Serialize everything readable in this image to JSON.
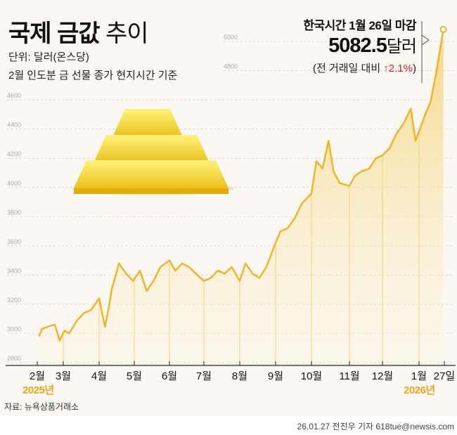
{
  "header": {
    "title_bold": "국제 금값",
    "title_normal": "추이",
    "unit": "단위: 달러(온스당)",
    "note": "2월 인도분 금 선물 종가 현지시간 기준"
  },
  "annotation": {
    "line1": "한국시간 1월 26일 마감",
    "value": "5082.5",
    "value_unit": "달러",
    "change_prefix": "(전 거래일 대비 ",
    "change": "↑2.1%",
    "change_suffix": ")",
    "change_color": "#e02020"
  },
  "footer": {
    "source": "자료: 뉴욕상품거래소",
    "credit": "26.01.27 전진우 기자 618tue@newsis.com"
  },
  "colors": {
    "line": "#f0b429",
    "fill": "#f7dc8c",
    "year": "#e8a817",
    "background": "#fbf8f3"
  },
  "chart_data": {
    "type": "area",
    "title": "국제 금값 추이",
    "ylabel": "",
    "ylim": [
      2800,
      5100
    ],
    "grid": true,
    "y_ticks": [
      2800,
      3000,
      3200,
      3400,
      3600,
      3800,
      4000,
      4200,
      4400,
      4600,
      4800,
      5000
    ],
    "x_ticks": [
      {
        "label": "2월",
        "date": "2025-02-01"
      },
      {
        "label": "3월",
        "date": "2025-03-01"
      },
      {
        "label": "4월",
        "date": "2025-04-01"
      },
      {
        "label": "5월",
        "date": "2025-05-01"
      },
      {
        "label": "6월",
        "date": "2025-06-01"
      },
      {
        "label": "7월",
        "date": "2025-07-01"
      },
      {
        "label": "8월",
        "date": "2025-08-01"
      },
      {
        "label": "9월",
        "date": "2025-09-01"
      },
      {
        "label": "10월",
        "date": "2025-10-01"
      },
      {
        "label": "11월",
        "date": "2025-11-01"
      },
      {
        "label": "12월",
        "date": "2025-12-01"
      },
      {
        "label": "1월",
        "date": "2026-01-01"
      },
      {
        "label": "27일",
        "date": "2026-01-27"
      }
    ],
    "year_labels": [
      {
        "label": "2025년",
        "date": "2025-02-01"
      },
      {
        "label": "2026년",
        "date": "2026-01-01"
      }
    ],
    "x": [
      "2025-02-03",
      "2025-02-06",
      "2025-02-14",
      "2025-02-20",
      "2025-02-25",
      "2025-03-02",
      "2025-03-06",
      "2025-03-13",
      "2025-03-19",
      "2025-03-25",
      "2025-04-01",
      "2025-04-06",
      "2025-04-09",
      "2025-04-12",
      "2025-04-18",
      "2025-04-24",
      "2025-04-30",
      "2025-05-06",
      "2025-05-12",
      "2025-05-18",
      "2025-05-24",
      "2025-06-01",
      "2025-06-06",
      "2025-06-12",
      "2025-06-18",
      "2025-06-24",
      "2025-07-01",
      "2025-07-07",
      "2025-07-13",
      "2025-07-19",
      "2025-07-25",
      "2025-08-01",
      "2025-08-06",
      "2025-08-12",
      "2025-08-18",
      "2025-08-24",
      "2025-09-01",
      "2025-09-05",
      "2025-09-11",
      "2025-09-17",
      "2025-09-23",
      "2025-10-01",
      "2025-10-05",
      "2025-10-10",
      "2025-10-15",
      "2025-10-19",
      "2025-10-24",
      "2025-11-01",
      "2025-11-06",
      "2025-11-12",
      "2025-11-19",
      "2025-11-25",
      "2025-12-01",
      "2025-12-07",
      "2025-12-13",
      "2025-12-19",
      "2025-12-25",
      "2025-12-29",
      "2026-01-08",
      "2026-01-13",
      "2026-01-19",
      "2026-01-26"
    ],
    "values": [
      2980,
      3030,
      3050,
      3060,
      2950,
      3020,
      3000,
      3090,
      3140,
      3160,
      3240,
      3045,
      3165,
      3310,
      3480,
      3410,
      3360,
      3430,
      3290,
      3360,
      3455,
      3500,
      3430,
      3480,
      3455,
      3410,
      3360,
      3380,
      3430,
      3410,
      3455,
      3360,
      3480,
      3410,
      3380,
      3455,
      3620,
      3700,
      3720,
      3790,
      3890,
      3960,
      4180,
      4130,
      4320,
      4110,
      4030,
      4010,
      4080,
      4110,
      4130,
      4200,
      4220,
      4270,
      4370,
      4440,
      4540,
      4320,
      4510,
      4590,
      4800,
      5082.5
    ]
  }
}
